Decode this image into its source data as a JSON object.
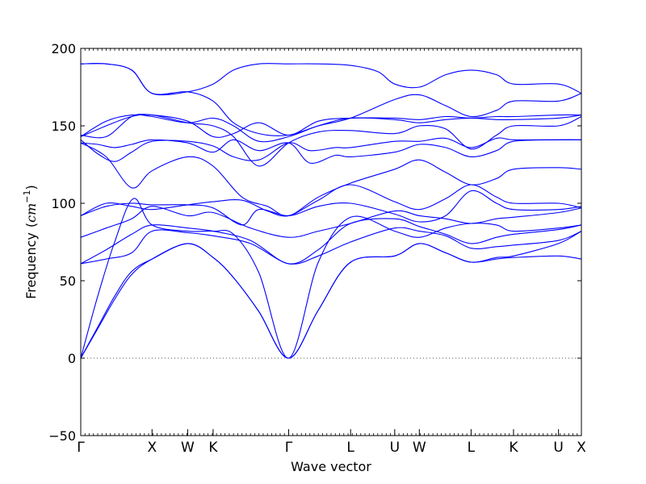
{
  "chart_data": {
    "type": "line",
    "title": "",
    "xlabel": "Wave vector",
    "ylabel_text": "Frequency",
    "ylabel_unit_open": "(",
    "ylabel_unit_base": "cm",
    "ylabel_unit_exp": "−1",
    "ylabel_unit_close": ")",
    "ylim": [
      -50,
      200
    ],
    "yticks": [
      -50,
      0,
      50,
      100,
      150,
      200
    ],
    "ytick_labels": [
      "−50",
      "0",
      "50",
      "100",
      "150",
      "200"
    ],
    "xlim": [
      0,
      5.9
    ],
    "high_symmetry_points": [
      {
        "label": "Γ",
        "x": 0.0
      },
      {
        "label": "X",
        "x": 0.84
      },
      {
        "label": "W",
        "x": 1.26
      },
      {
        "label": "K",
        "x": 1.56
      },
      {
        "label": "Γ",
        "x": 2.45
      },
      {
        "label": "L",
        "x": 3.18
      },
      {
        "label": "U",
        "x": 3.7
      },
      {
        "label": "W",
        "x": 3.99
      },
      {
        "label": "L",
        "x": 4.6
      },
      {
        "label": "K",
        "x": 5.1
      },
      {
        "label": "U",
        "x": 5.63
      },
      {
        "label": "X",
        "x": 5.9
      }
    ],
    "zero_line": 0,
    "grid": false,
    "line_color": "#0000ff",
    "zero_line_color": "#555555",
    "series": [
      {
        "x": [
          0,
          0.2,
          0.4,
          0.6,
          0.84,
          1.26,
          1.56,
          1.8,
          2.1,
          2.45,
          2.8,
          3.18,
          3.7,
          3.99,
          4.3,
          4.6,
          4.9,
          5.1,
          5.63,
          5.9
        ],
        "y": [
          0,
          19,
          38,
          54,
          64,
          74,
          65,
          52,
          30,
          0,
          31,
          62,
          66,
          74,
          68,
          62,
          64,
          65,
          66,
          64
        ]
      },
      {
        "x": [
          0,
          0.2,
          0.4,
          0.6,
          0.84,
          1.26,
          1.56,
          1.8,
          2.1,
          2.45,
          2.8,
          3.18,
          3.7,
          3.99,
          4.3,
          4.6,
          4.9,
          5.1,
          5.63,
          5.9
        ],
        "y": [
          0,
          20,
          40,
          56,
          64,
          74,
          65,
          52,
          30,
          0,
          31,
          62,
          66,
          74,
          68,
          62,
          65,
          66,
          74,
          82
        ]
      },
      {
        "x": [
          0,
          0.2,
          0.4,
          0.62,
          0.84,
          1.26,
          1.56,
          1.8,
          2.1,
          2.45,
          2.8,
          3.18,
          3.7,
          3.99,
          4.3,
          4.6,
          4.9,
          5.1,
          5.63,
          5.9
        ],
        "y": [
          0,
          40,
          75,
          103,
          86,
          82,
          82,
          80,
          55,
          0,
          62,
          91,
          82,
          78,
          84,
          87,
          86,
          82,
          84,
          86
        ]
      },
      {
        "x": [
          0,
          0.3,
          0.6,
          0.84,
          1.26,
          1.56,
          2.0,
          2.45,
          2.8,
          3.18,
          3.7,
          3.99,
          4.3,
          4.6,
          4.9,
          5.1,
          5.63,
          5.9
        ],
        "y": [
          61,
          64,
          68,
          82,
          81,
          79,
          74,
          61,
          66,
          75,
          84,
          82,
          79,
          71,
          72,
          73,
          76,
          82
        ]
      },
      {
        "x": [
          0,
          0.3,
          0.6,
          0.84,
          1.26,
          1.56,
          2.0,
          2.45,
          2.8,
          3.18,
          3.7,
          3.99,
          4.3,
          4.6,
          4.9,
          5.1,
          5.63,
          5.9
        ],
        "y": [
          61,
          70,
          80,
          86,
          84,
          82,
          76,
          61,
          70,
          87,
          90,
          85,
          80,
          74,
          78,
          80,
          83,
          86
        ]
      },
      {
        "x": [
          0,
          0.3,
          0.6,
          0.84,
          1.26,
          1.56,
          2.0,
          2.45,
          2.8,
          3.18,
          3.7,
          3.99,
          4.3,
          4.6,
          4.9,
          5.1,
          5.63,
          5.9
        ],
        "y": [
          78,
          84,
          90,
          98,
          92,
          94,
          84,
          78,
          82,
          87,
          95,
          92,
          90,
          87,
          90,
          91,
          94,
          97
        ]
      },
      {
        "x": [
          0,
          0.3,
          0.6,
          0.84,
          1.26,
          1.56,
          1.9,
          2.1,
          2.45,
          2.8,
          3.18,
          3.7,
          3.99,
          4.3,
          4.6,
          4.9,
          5.1,
          5.63,
          5.9
        ],
        "y": [
          92,
          98,
          100,
          99,
          99,
          97,
          86,
          96,
          92,
          98,
          100,
          93,
          88,
          92,
          108,
          100,
          96,
          96,
          98
        ]
      },
      {
        "x": [
          0,
          0.3,
          0.6,
          0.84,
          1.26,
          1.56,
          1.9,
          2.2,
          2.45,
          2.8,
          3.18,
          3.7,
          3.99,
          4.3,
          4.6,
          4.9,
          5.1,
          5.63,
          5.9
        ],
        "y": [
          92,
          100,
          98,
          96,
          99,
          101,
          102,
          95,
          92,
          102,
          112,
          101,
          96,
          103,
          112,
          104,
          100,
          100,
          97
        ]
      },
      {
        "x": [
          0,
          0.3,
          0.6,
          0.84,
          1.26,
          1.56,
          1.9,
          2.2,
          2.45,
          2.8,
          3.18,
          3.7,
          3.99,
          4.3,
          4.6,
          4.9,
          5.1,
          5.63,
          5.9
        ],
        "y": [
          139,
          130,
          110,
          121,
          130,
          124,
          104,
          98,
          92,
          104,
          113,
          122,
          128,
          120,
          112,
          116,
          122,
          123,
          122
        ]
      },
      {
        "x": [
          0,
          0.2,
          0.4,
          0.6,
          0.84,
          1.26,
          1.56,
          1.8,
          2.1,
          2.45,
          2.7,
          3.0,
          3.18,
          3.7,
          3.99,
          4.3,
          4.6,
          4.9,
          5.1,
          5.63,
          5.9
        ],
        "y": [
          139,
          138,
          136,
          138,
          141,
          139,
          133,
          141,
          134,
          139,
          126,
          131,
          130,
          133,
          138,
          136,
          130,
          134,
          140,
          141,
          141
        ]
      },
      {
        "x": [
          0,
          0.2,
          0.4,
          0.6,
          0.84,
          1.26,
          1.56,
          1.8,
          2.1,
          2.45,
          2.7,
          3.0,
          3.18,
          3.7,
          3.99,
          4.3,
          4.6,
          4.9,
          5.1,
          5.63,
          5.9
        ],
        "y": [
          141,
          132,
          127,
          133,
          140,
          140,
          137,
          130,
          128,
          139,
          134,
          136,
          136,
          140,
          140,
          142,
          136,
          142,
          141,
          141,
          141
        ]
      },
      {
        "x": [
          0,
          0.3,
          0.6,
          0.84,
          1.26,
          1.56,
          1.8,
          2.1,
          2.45,
          2.8,
          3.18,
          3.7,
          3.99,
          4.3,
          4.6,
          4.9,
          5.1,
          5.63,
          5.9
        ],
        "y": [
          143,
          150,
          156,
          157,
          152,
          150,
          143,
          124,
          139,
          146,
          147,
          145,
          150,
          148,
          135,
          144,
          150,
          150,
          156
        ]
      },
      {
        "x": [
          0,
          0.3,
          0.6,
          0.84,
          1.26,
          1.56,
          1.8,
          2.1,
          2.45,
          2.8,
          3.18,
          3.7,
          3.99,
          4.3,
          4.6,
          4.9,
          5.1,
          5.63,
          5.9
        ],
        "y": [
          143,
          153,
          157,
          156,
          152,
          155,
          150,
          140,
          143,
          150,
          155,
          154,
          152,
          154,
          155,
          154,
          154,
          155,
          157
        ]
      },
      {
        "x": [
          0,
          0.3,
          0.6,
          0.84,
          1.26,
          1.56,
          1.8,
          2.1,
          2.45,
          2.8,
          3.18,
          3.7,
          3.99,
          4.3,
          4.6,
          4.9,
          5.1,
          5.63,
          5.9
        ],
        "y": [
          144,
          143,
          156,
          157,
          153,
          143,
          145,
          152,
          144,
          153,
          155,
          155,
          154,
          156,
          155,
          156,
          156,
          157,
          157
        ]
      },
      {
        "x": [
          0,
          0.3,
          0.6,
          0.84,
          1.26,
          1.56,
          1.8,
          2.1,
          2.45,
          2.8,
          3.18,
          3.7,
          3.99,
          4.3,
          4.6,
          4.9,
          5.1,
          5.63,
          5.9
        ],
        "y": [
          190,
          190,
          186,
          171,
          172,
          166,
          152,
          145,
          144,
          150,
          155,
          167,
          170,
          163,
          156,
          160,
          166,
          166,
          171
        ]
      },
      {
        "x": [
          0,
          0.3,
          0.6,
          0.84,
          1.26,
          1.56,
          1.8,
          2.1,
          2.45,
          2.8,
          3.18,
          3.5,
          3.7,
          3.99,
          4.3,
          4.6,
          4.9,
          5.1,
          5.63,
          5.9
        ],
        "y": [
          190,
          190,
          186,
          171,
          172,
          177,
          186,
          190,
          190,
          190,
          189,
          185,
          177,
          175,
          183,
          186,
          183,
          177,
          177,
          171
        ]
      }
    ]
  }
}
